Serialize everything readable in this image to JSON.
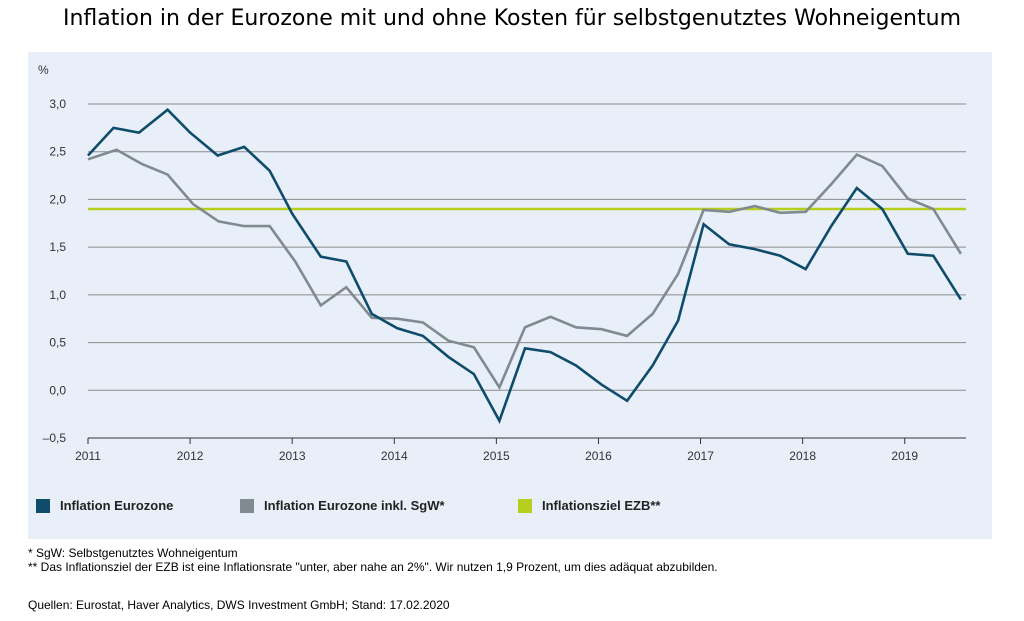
{
  "title": "Inflation in der Eurozone mit und ohne Kosten für selbstgenutztes Wohneigentum",
  "footnote1": "* SgW: Selbstgenutztes Wohneigentum",
  "footnote2": "** Das Inflationsziel der EZB ist eine Inflationsrate \"unter, aber nahe an 2%\". Wir nutzen 1,9 Prozent, um dies adäquat abzubilden.",
  "source": "Quellen: Eurostat, Haver Analytics, DWS Investment GmbH; Stand: 17.02.2020",
  "chart_data": {
    "type": "line",
    "title": "Inflation in der Eurozone mit und ohne Kosten für selbstgenutztes Wohneigentum",
    "ylabel": "%",
    "ylim": [
      -0.5,
      3.0
    ],
    "xlim": [
      2011.0,
      2019.6
    ],
    "yticks": [
      -0.5,
      0.0,
      0.5,
      1.0,
      1.5,
      2.0,
      2.5,
      3.0
    ],
    "ytick_labels": [
      "–0,5",
      "0,0",
      "0,5",
      "1,0",
      "1,5",
      "2,0",
      "2,5",
      "3,0"
    ],
    "xticks": [
      2011,
      2012,
      2013,
      2014,
      2015,
      2016,
      2017,
      2018,
      2019
    ],
    "xtick_labels": [
      "2011",
      "2012",
      "2013",
      "2014",
      "2015",
      "2016",
      "2017",
      "2018",
      "2019"
    ],
    "grid": true,
    "legend_position": "bottom",
    "series": [
      {
        "name": "Inflation Eurozone",
        "color": "#0f4c6c",
        "x": [
          2011.0,
          2011.25,
          2011.5,
          2011.78,
          2012.0,
          2012.27,
          2012.53,
          2012.78,
          2013.0,
          2013.28,
          2013.53,
          2013.78,
          2014.03,
          2014.28,
          2014.53,
          2014.78,
          2015.03,
          2015.28,
          2015.53,
          2015.78,
          2016.03,
          2016.28,
          2016.53,
          2016.78,
          2017.03,
          2017.28,
          2017.53,
          2017.78,
          2018.03,
          2018.28,
          2018.53,
          2018.78,
          2019.03,
          2019.28,
          2019.55
        ],
        "y": [
          2.46,
          2.75,
          2.7,
          2.94,
          2.7,
          2.46,
          2.55,
          2.3,
          1.85,
          1.4,
          1.35,
          0.8,
          0.65,
          0.57,
          0.35,
          0.17,
          -0.32,
          0.44,
          0.4,
          0.26,
          0.06,
          -0.11,
          0.26,
          0.73,
          1.74,
          1.53,
          1.48,
          1.41,
          1.27,
          1.72,
          2.12,
          1.9,
          1.43,
          1.41,
          0.95
        ]
      },
      {
        "name": "Inflation Eurozone inkl. SgW*",
        "color": "#808a90",
        "x": [
          2011.0,
          2011.28,
          2011.53,
          2011.78,
          2012.03,
          2012.28,
          2012.53,
          2012.78,
          2013.03,
          2013.28,
          2013.53,
          2013.78,
          2014.03,
          2014.28,
          2014.53,
          2014.78,
          2015.03,
          2015.28,
          2015.53,
          2015.78,
          2016.03,
          2016.28,
          2016.53,
          2016.78,
          2017.03,
          2017.28,
          2017.53,
          2017.78,
          2018.03,
          2018.28,
          2018.53,
          2018.78,
          2019.03,
          2019.28,
          2019.55
        ],
        "y": [
          2.42,
          2.52,
          2.37,
          2.26,
          1.95,
          1.77,
          1.72,
          1.72,
          1.35,
          0.89,
          1.08,
          0.76,
          0.75,
          0.71,
          0.52,
          0.45,
          0.03,
          0.66,
          0.77,
          0.66,
          0.64,
          0.57,
          0.8,
          1.22,
          1.89,
          1.87,
          1.93,
          1.86,
          1.87,
          2.16,
          2.47,
          2.35,
          2.01,
          1.9,
          1.43
        ]
      },
      {
        "name": "Inflationsziel EZB**",
        "color": "#b6cf1e",
        "x": [
          2011.0,
          2019.6
        ],
        "y": [
          1.9,
          1.9
        ]
      }
    ]
  }
}
